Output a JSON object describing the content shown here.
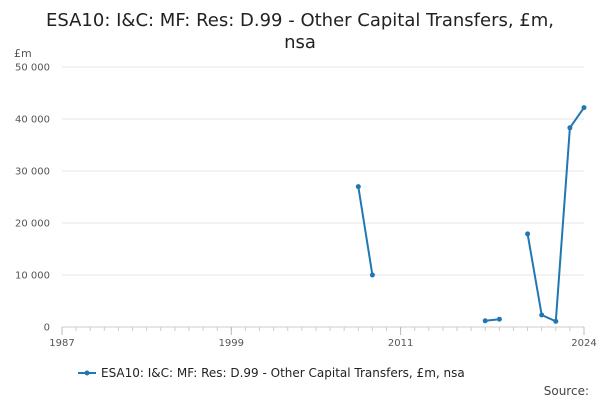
{
  "chart_data": {
    "type": "line",
    "title_lines": [
      "ESA10: I&C: MF: Res: D.99 - Other Capital Transfers, £m,",
      "nsa"
    ],
    "ylabel": "£m",
    "xlabel": "",
    "ylim": [
      0,
      50000
    ],
    "xlim": [
      1987,
      2024
    ],
    "y_ticks": [
      0,
      10000,
      20000,
      30000,
      40000,
      50000
    ],
    "y_tick_labels": [
      "0",
      "10 000",
      "20 000",
      "30 000",
      "40 000",
      "50 000"
    ],
    "x_ticks": [
      1987,
      1999,
      2011,
      2024
    ],
    "x_tick_labels": [
      "1987",
      "1999",
      "2011",
      "2024"
    ],
    "grid": true,
    "legend_position": "bottom",
    "series": [
      {
        "name": "ESA10: I&C: MF: Res: D.99 - Other Capital Transfers, £m, nsa",
        "color": "#1f78b4",
        "segments": [
          [
            [
              2008,
              27000
            ],
            [
              2009,
              10000
            ]
          ],
          [
            [
              2017,
              1200
            ],
            [
              2018,
              1500
            ]
          ],
          [
            [
              2020,
              17900
            ],
            [
              2021,
              2300
            ],
            [
              2022,
              1100
            ],
            [
              2023,
              38300
            ],
            [
              2024,
              42200
            ]
          ]
        ]
      }
    ]
  },
  "footer": {
    "source_label": "Source:"
  }
}
